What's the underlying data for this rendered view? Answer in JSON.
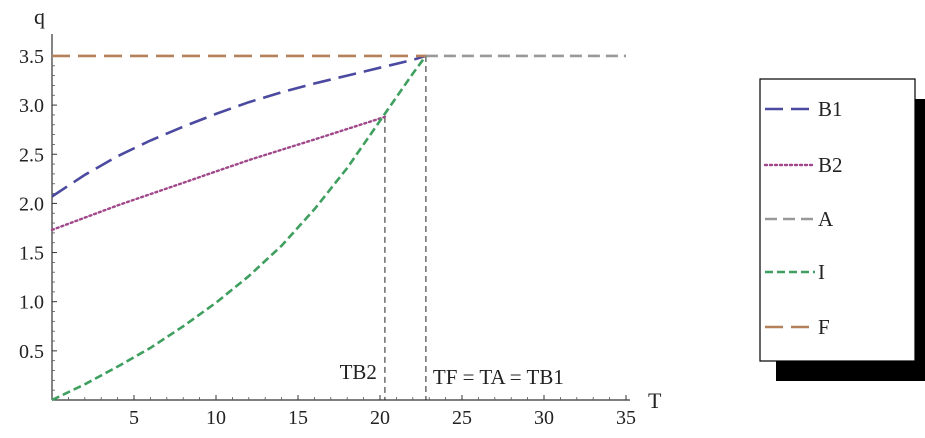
{
  "chart_data": {
    "type": "line",
    "title": "",
    "xlabel": "T",
    "ylabel": "q",
    "xlim": [
      0,
      35
    ],
    "ylim": [
      0,
      3.5
    ],
    "x_ticks": [
      5,
      10,
      15,
      20,
      25,
      30,
      35
    ],
    "y_ticks": [
      0.5,
      1.0,
      1.5,
      2.0,
      2.5,
      3.0,
      3.5
    ],
    "x_tick_labels": [
      "5",
      "10",
      "15",
      "20",
      "25",
      "30",
      "35"
    ],
    "y_tick_labels": [
      "0.5",
      "1.0",
      "1.5",
      "2.0",
      "2.5",
      "3.0",
      "3.5"
    ],
    "grid": false,
    "legend_position": "right",
    "series": [
      {
        "name": "B1",
        "color": "#4b4aa0",
        "style": "long-dash",
        "x": [
          0,
          2,
          4,
          6,
          8,
          10,
          12,
          14,
          16,
          18,
          20,
          22,
          22.8
        ],
        "y": [
          2.07,
          2.29,
          2.48,
          2.64,
          2.78,
          2.91,
          3.03,
          3.13,
          3.22,
          3.3,
          3.38,
          3.46,
          3.5
        ]
      },
      {
        "name": "B2",
        "color": "#a0488a",
        "style": "dotted",
        "x": [
          0,
          4,
          8,
          12,
          16,
          20.3
        ],
        "y": [
          1.73,
          1.98,
          2.21,
          2.44,
          2.65,
          2.88
        ]
      },
      {
        "name": "A",
        "color": "#999999",
        "style": "dashed",
        "x": [
          22.8,
          35
        ],
        "y": [
          3.5,
          3.5
        ]
      },
      {
        "name": "I",
        "color": "#3f9f5f",
        "style": "short-dash",
        "x": [
          0,
          2,
          4,
          6,
          8,
          10,
          12,
          14,
          16,
          18,
          20,
          22,
          22.8
        ],
        "y": [
          0.0,
          0.16,
          0.34,
          0.53,
          0.75,
          0.99,
          1.26,
          1.57,
          1.94,
          2.36,
          2.84,
          3.32,
          3.5
        ]
      },
      {
        "name": "F",
        "color": "#b5815a",
        "style": "long-dash",
        "x": [
          0,
          22.8
        ],
        "y": [
          3.5,
          3.5
        ]
      }
    ],
    "annotations": [
      {
        "label": "TB2",
        "x": 20.3
      },
      {
        "label": "TF = TA = TB1",
        "x": 22.8
      }
    ]
  }
}
